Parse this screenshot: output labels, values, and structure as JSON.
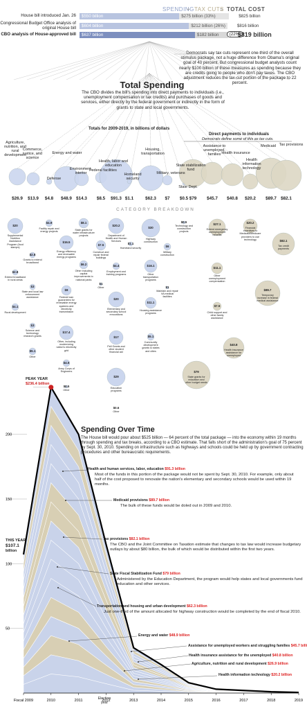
{
  "header": {
    "spending": "SPENDING",
    "plus": "+",
    "tax_cuts": "TAX CUTS",
    "equals": "=",
    "total_cost": "TOTAL COST"
  },
  "bars": [
    {
      "label": "House bill introduced Jan. 26",
      "spending": "$550 billion",
      "tax": "$275 billion (33%)",
      "total": "$825 billion",
      "spend_val": 550,
      "tax_val": 275
    },
    {
      "label": "Congressional Budget Office analysis of original House bill",
      "spending": "$604 billion",
      "tax": "$212 billion (26%)",
      "total": "$816 billion",
      "spend_val": 604,
      "tax_val": 212
    },
    {
      "label": "CBO analysis of House-approved bill",
      "spending": "$637 billion",
      "tax": "$182 billion",
      "tax_pct": "(22%)",
      "total": "$819 billion",
      "spend_val": 637,
      "tax_val": 182
    }
  ],
  "dem_note": "Democrats say tax cuts represent one-third of the overall stimulus package, not a huge difference from Obama's original goal of 40 percent. But congressional budget analysts count nearly $100 billion of these measures as spending because they are credits going to people who don't pay taxes. The CBO adjustment reduces the tax-cut portion of the package to 22 percent.",
  "total_spending": {
    "title": "Total Spending",
    "text": "The CBO divides the bill's spending into direct payments to individuals (i.e., unemployment compensation or tax credits) and purchases of goods and services, either directly by the federal government or indirectly in the form of grants to state and local governments.",
    "totals_label": "Totals for 2009-2019, in billions of dollars",
    "direct_label": "Direct payments to individuals",
    "direct_sub": "Democrats define some of this as tax cuts.",
    "breakdown": "CATEGORY BREAKDOWN"
  },
  "categories": [
    {
      "name": "Agriculture, nutrition, and rural development",
      "amount": "$26.9"
    },
    {
      "name": "Commerce, justice, and science",
      "amount": "$13.9"
    },
    {
      "name": "Defense",
      "amount": "$4.8"
    },
    {
      "name": "Energy and water",
      "amount": "$48.9"
    },
    {
      "name": "Environment, interior",
      "amount": "$14.3"
    },
    {
      "name": "Federal facilities",
      "amount": "$8.5"
    },
    {
      "name": "Health, labor and education",
      "amount": "$91.3"
    },
    {
      "name": "Homeland security",
      "amount": "$1.1"
    },
    {
      "name": "Housing, transportation",
      "amount": "$62.3"
    },
    {
      "name": "Military, veterans",
      "amount": "$7"
    },
    {
      "name": "State Dept.",
      "amount": "$0.5"
    },
    {
      "name": "State stabilization fund",
      "amount": "$79"
    },
    {
      "name": "Assistance to unemployed, families",
      "amount": "$45.7"
    },
    {
      "name": "Health insurance",
      "amount": "$40.8"
    },
    {
      "name": "Health information technology",
      "amount": "$20.2"
    },
    {
      "name": "Medicaid",
      "amount": "$89.7"
    },
    {
      "name": "Tax provisions",
      "amount": "$82.1"
    }
  ],
  "breakdown_items": [
    {
      "v": "$20",
      "t": "Supplemental Nutrition Assistance Program (food stamps)"
    },
    {
      "v": "$2.8",
      "t": "Grants to extend broadband"
    },
    {
      "v": "$2.8",
      "t": "Extend broadband in rural areas"
    },
    {
      "v": "$3",
      "t": "State and local law enforcement assistance"
    },
    {
      "v": "$4.1",
      "t": "Rural development"
    },
    {
      "v": "$3",
      "t": "Science and technology research grants"
    },
    {
      "v": "$5.1",
      "t": "Other"
    },
    {
      "v": "$4.9",
      "t": "Facility repair and energy projects"
    },
    {
      "v": "$16.5",
      "t": "Energy efficiency and renewable energy programs"
    },
    {
      "v": "$8",
      "t": "Federal loan guarantees for renewable energy systems and electricity transmission"
    },
    {
      "v": "$17.4",
      "t": "Other, including modernizing nation's electricity grid"
    },
    {
      "v": "$4.5",
      "t": "Army Corps of Engineers"
    },
    {
      "v": "$0.5",
      "t": "Other"
    },
    {
      "v": "$8.1",
      "t": "State grants for water infrastructure projects"
    },
    {
      "v": "$6.2",
      "t": "Other including capital improvements to national parks"
    },
    {
      "v": "$7.5",
      "t": "Construct and repair federal buildings"
    },
    {
      "v": "$1",
      "t": "Other"
    },
    {
      "v": "$20.2",
      "t": "Department of Health and Human Services"
    },
    {
      "v": "$4.4",
      "t": "Employment and training programs"
    },
    {
      "v": "$20",
      "t": "Elementary and secondary school renovations"
    },
    {
      "v": "$17",
      "t": "Pell Grants and other student financial aid"
    },
    {
      "v": "$29",
      "t": "Education programs"
    },
    {
      "v": "$0.6",
      "t": "Other"
    },
    {
      "v": "$1.1",
      "t": "Homeland security"
    },
    {
      "v": "$30",
      "t": "Highway construction"
    },
    {
      "v": "$16.1",
      "t": "Other transportation programs"
    },
    {
      "v": "$11.1",
      "t": "Housing assistance programs"
    },
    {
      "v": "$5.1",
      "t": "Community development grants to states and cities"
    },
    {
      "v": "$6",
      "t": "Military construction"
    },
    {
      "v": "$1",
      "t": "Maintain and repair VA medical facilities"
    },
    {
      "v": "$0.5",
      "t": "Technology and construction projects"
    },
    {
      "v": "$79",
      "t": "State grants for education and other budget needs"
    },
    {
      "v": "$27.1",
      "t": "Extend emergency unemployment benefits"
    },
    {
      "v": "$11.1",
      "t": "Other unemployment compensation"
    },
    {
      "v": "$7.5",
      "t": "Child support and other family assistance"
    },
    {
      "v": "$40.8",
      "t": "Health insurance assistance for unemployed"
    },
    {
      "v": "$20.2",
      "t": "Financial incentives to Medicaid/Medicare providers to use technology"
    },
    {
      "v": "$89.7",
      "t": "Temporary increase in federal medical assistance"
    },
    {
      "v": "$82.1",
      "t": "Tax credit payments"
    }
  ],
  "over_time": {
    "title": "Spending Over Time",
    "intro": "The House bill would pour about $525 billion — 64 percent of the total package — into the economy within 19 months through spending and tax breaks, according to a CBO estimate. That falls short of the administration's goal of 75 percent by Sept. 30, 2010. Spending on infrastructure such as highways and schools could be held up by government contracting procedures and other bureaucratic requirements.",
    "peak_year": "PEAK YEAR",
    "peak_val": "$236.4 billion",
    "this_year": "THIS YEAR",
    "this_year_val": "$107.1",
    "this_year_unit": "billion",
    "election": "Election year"
  },
  "callouts": [
    {
      "name": "Health and human services, labor, education",
      "value": "$91.3 billion",
      "desc": "Most of the funds in this portion of the package would not be spent by Sept. 30, 2010. For example, only about half of the cost proposed to renovate the nation's elementary and secondary schools would be used within 19 months."
    },
    {
      "name": "Medicaid provisions",
      "value": "$89.7 billion",
      "desc": "The bulk of these funds would be doled out in 2009 and 2010."
    },
    {
      "name": "Tax provisions",
      "value": "$82.1 billion",
      "desc": "The CBO and the Joint Committee on Taxation estimate that changes to tax law would increase budgetary outlays by about $80 billion, the bulk of which would be distributed within the first two years."
    },
    {
      "name": "State Fiscal Stabilization Fund",
      "value": "$79 billion",
      "desc": "Administered by the Education Department, the program would help states and local governments fund education and other services."
    },
    {
      "name": "Transportation and housing and urban development",
      "value": "$62.3 billion",
      "desc": "Just one-third of the amount allocated for highway construction would be completed by the end of fiscal 2010."
    },
    {
      "name": "Energy and water",
      "value": "$48.9 billion",
      "desc": ""
    },
    {
      "name": "Assistance for unemployed workers and struggling families",
      "value": "$45.7 billion",
      "desc": ""
    },
    {
      "name": "Health insurance assistance for the unemployed",
      "value": "$40.8 billion",
      "desc": ""
    },
    {
      "name": "Agriculture, nutrition and rural development",
      "value": "$26.9 billion",
      "desc": ""
    },
    {
      "name": "Health information technology",
      "value": "$20.2 billion",
      "desc": ""
    }
  ],
  "chart_data": {
    "type": "area",
    "title": "Spending Over Time",
    "x": [
      "Fiscal 2009",
      "2010",
      "2011",
      "2012",
      "2013",
      "2014",
      "2015",
      "2016",
      "2017",
      "2018",
      "2019"
    ],
    "y_ticks": [
      50,
      100,
      150,
      200
    ],
    "ylim": [
      0,
      240
    ],
    "total": [
      107.1,
      236.4,
      200,
      115,
      35,
      22,
      8,
      3,
      2,
      1,
      0.5
    ],
    "annotations": [
      "PEAK YEAR $236.4 billion",
      "THIS YEAR $107.1 billion"
    ],
    "colors": {
      "spending": "#c9d3ea",
      "tax": "#d8cfb4",
      "line": "#000000",
      "accent": "#cc2222"
    }
  }
}
